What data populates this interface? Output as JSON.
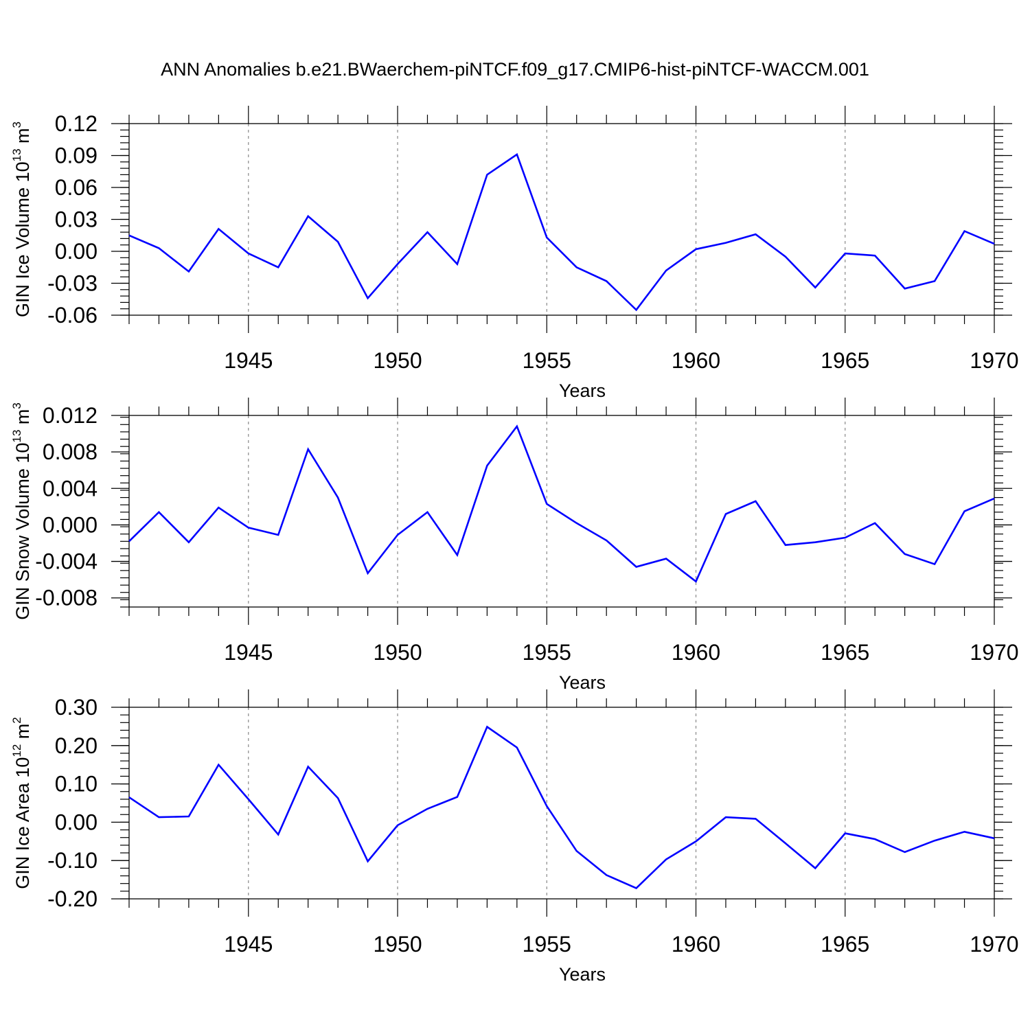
{
  "page": {
    "title": "ANN Anomalies b.e21.BWaerchem-piNTCF.f09_g17.CMIP6-hist-piNTCF-WACCM.001"
  },
  "style": {
    "line_color": "#0000ff",
    "grid_color": "#888888",
    "axis_color": "#000000"
  },
  "chart_data": [
    {
      "type": "line",
      "ylabel": {
        "main": "GIN Ice Volume 10",
        "sup": "13",
        "tail": " m",
        "sup2": "3"
      },
      "xlabel": "Years",
      "xlim": [
        1941,
        1970
      ],
      "ylim": [
        -0.06,
        0.12
      ],
      "yticks": [
        -0.06,
        -0.03,
        0.0,
        0.03,
        0.06,
        0.09,
        0.12
      ],
      "ytick_labels": [
        "-0.06",
        "-0.03",
        "0.00",
        "0.03",
        "0.06",
        "0.09",
        "0.12"
      ],
      "yminor_step": 0.006,
      "xticks": [
        1945,
        1950,
        1955,
        1960,
        1965,
        1970
      ],
      "xtick_labels": [
        "1945",
        "1950",
        "1955",
        "1960",
        "1965",
        "1970"
      ],
      "grid": "vertical dashed at major x ticks",
      "x": [
        1941,
        1942,
        1943,
        1944,
        1945,
        1946,
        1947,
        1948,
        1949,
        1950,
        1951,
        1952,
        1953,
        1954,
        1955,
        1956,
        1957,
        1958,
        1959,
        1960,
        1961,
        1962,
        1963,
        1964,
        1965,
        1966,
        1967,
        1968,
        1969,
        1970
      ],
      "series": [
        {
          "values": [
            0.015,
            0.003,
            -0.019,
            0.021,
            -0.002,
            -0.015,
            0.033,
            0.009,
            -0.044,
            -0.012,
            0.018,
            -0.012,
            0.072,
            0.091,
            0.013,
            -0.015,
            -0.028,
            -0.055,
            -0.018,
            0.002,
            0.008,
            0.016,
            -0.005,
            -0.034,
            -0.002,
            -0.004,
            -0.035,
            -0.028,
            0.019,
            0.007
          ]
        }
      ]
    },
    {
      "type": "line",
      "ylabel": {
        "main": "GIN Snow Volume 10",
        "sup": "13",
        "tail": " m",
        "sup2": "3"
      },
      "xlabel": "Years",
      "xlim": [
        1941,
        1970
      ],
      "ylim": [
        -0.009,
        0.012
      ],
      "yticks": [
        -0.008,
        -0.004,
        0.0,
        0.004,
        0.008,
        0.012
      ],
      "ytick_labels": [
        "-0.008",
        "-0.004",
        "0.000",
        "0.004",
        "0.008",
        "0.012"
      ],
      "yminor_step": 0.0008,
      "xticks": [
        1945,
        1950,
        1955,
        1960,
        1965,
        1970
      ],
      "xtick_labels": [
        "1945",
        "1950",
        "1955",
        "1960",
        "1965",
        "1970"
      ],
      "grid": "vertical dashed at major x ticks",
      "x": [
        1941,
        1942,
        1943,
        1944,
        1945,
        1946,
        1947,
        1948,
        1949,
        1950,
        1951,
        1952,
        1953,
        1954,
        1955,
        1956,
        1957,
        1958,
        1959,
        1960,
        1961,
        1962,
        1963,
        1964,
        1965,
        1966,
        1967,
        1968,
        1969,
        1970
      ],
      "series": [
        {
          "values": [
            -0.0018,
            0.0014,
            -0.0019,
            0.0019,
            -0.0003,
            -0.0011,
            0.0083,
            0.003,
            -0.0053,
            -0.0011,
            0.0014,
            -0.0033,
            0.0065,
            0.0108,
            0.0023,
            0.0002,
            -0.0017,
            -0.0046,
            -0.0037,
            -0.0062,
            0.0012,
            0.0026,
            -0.0022,
            -0.0019,
            -0.0014,
            0.0002,
            -0.0032,
            -0.0043,
            0.0015,
            0.0029
          ]
        }
      ]
    },
    {
      "type": "line",
      "ylabel": {
        "main": "GIN Ice Area 10",
        "sup": "12",
        "tail": " m",
        "sup2": "2"
      },
      "xlabel": "Years",
      "xlim": [
        1941,
        1970
      ],
      "ylim": [
        -0.2,
        0.3
      ],
      "yticks": [
        -0.2,
        -0.1,
        0.0,
        0.1,
        0.2,
        0.3
      ],
      "ytick_labels": [
        "-0.20",
        "-0.10",
        "0.00",
        "0.10",
        "0.20",
        "0.30"
      ],
      "yminor_step": 0.02,
      "xticks": [
        1945,
        1950,
        1955,
        1960,
        1965,
        1970
      ],
      "xtick_labels": [
        "1945",
        "1950",
        "1955",
        "1960",
        "1965",
        "1970"
      ],
      "grid": "vertical dashed at major x ticks",
      "x": [
        1941,
        1942,
        1943,
        1944,
        1945,
        1946,
        1947,
        1948,
        1949,
        1950,
        1951,
        1952,
        1953,
        1954,
        1955,
        1956,
        1957,
        1958,
        1959,
        1960,
        1961,
        1962,
        1963,
        1964,
        1965,
        1966,
        1967,
        1968,
        1969,
        1970
      ],
      "series": [
        {
          "values": [
            0.065,
            0.013,
            0.015,
            0.15,
            0.06,
            -0.032,
            0.145,
            0.063,
            -0.102,
            -0.008,
            0.035,
            0.066,
            0.249,
            0.195,
            0.042,
            -0.075,
            -0.138,
            -0.172,
            -0.097,
            -0.05,
            0.013,
            0.009,
            -0.055,
            -0.12,
            -0.029,
            -0.044,
            -0.078,
            -0.048,
            -0.025,
            -0.042
          ]
        }
      ]
    }
  ]
}
